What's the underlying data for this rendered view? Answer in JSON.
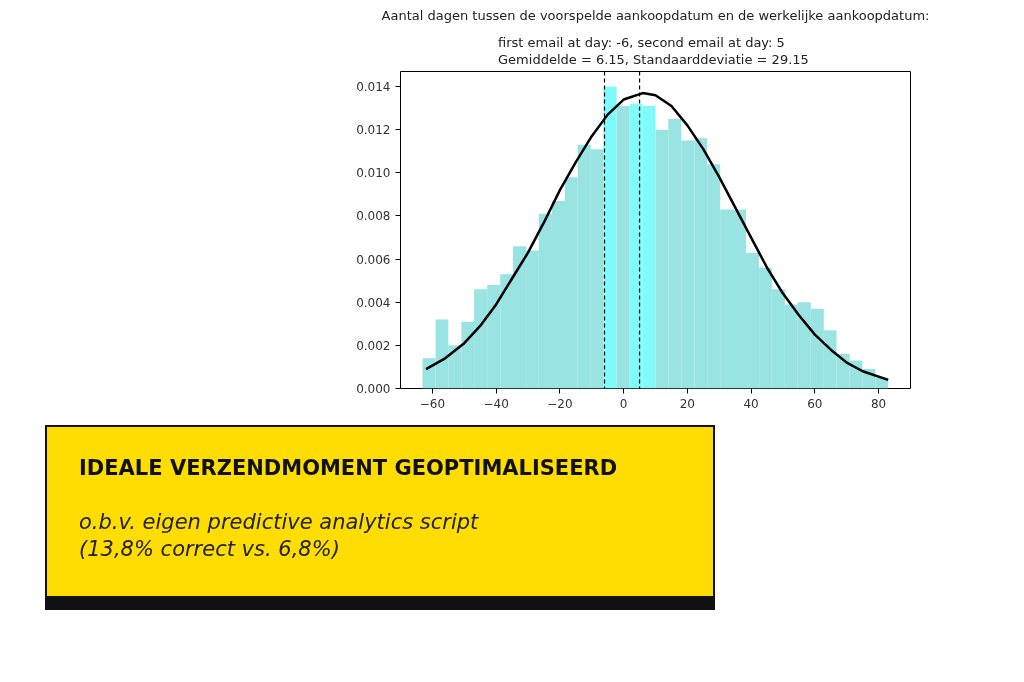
{
  "chart_data": {
    "type": "histogram",
    "title": "Aantal dagen tussen de voorspelde aankoopdatum en de werkelijke aankoopdatum:",
    "subtitle": "first email at day: -6, second email at day: 5\nGemiddelde = 6.15,  Standaarddeviatie = 29.15",
    "bins": [
      -63.1,
      -59.0,
      -55.0,
      -50.9,
      -46.9,
      -42.8,
      -38.7,
      -34.7,
      -30.6,
      -26.6,
      -22.5,
      -18.4,
      -14.4,
      -10.3,
      -6.3,
      -2.2,
      1.9,
      5.9,
      10.0,
      14.0,
      18.1,
      22.2,
      26.2,
      30.3,
      34.3,
      38.4,
      42.5,
      46.5,
      50.6,
      54.6,
      58.7,
      62.8,
      66.8,
      70.9,
      74.9,
      79.0,
      83.0
    ],
    "values": [
      0.0014,
      0.0032,
      0.002,
      0.0031,
      0.0046,
      0.0048,
      0.0053,
      0.0066,
      0.0064,
      0.0081,
      0.0087,
      0.0098,
      0.0113,
      0.0111,
      0.014,
      0.0131,
      0.0132,
      0.0131,
      0.012,
      0.0125,
      0.0115,
      0.0116,
      0.0104,
      0.0083,
      0.0083,
      0.0063,
      0.0056,
      0.0046,
      0.0039,
      0.004,
      0.0037,
      0.0027,
      0.0016,
      0.0013,
      0.0009,
      0.0005
    ],
    "colors": [
      "#99e3e3",
      "#99e3e3",
      "#99e3e3",
      "#99e3e3",
      "#99e3e3",
      "#99e3e3",
      "#99e3e3",
      "#99e3e3",
      "#99e3e3",
      "#99e3e3",
      "#99e3e3",
      "#99e3e3",
      "#99e3e3",
      "#99e3e3",
      "#80fbfb",
      "#99e3e3",
      "#80fbfb",
      "#80fbfb",
      "#99e3e3",
      "#99e3e3",
      "#99e3e3",
      "#99e3e3",
      "#99e3e3",
      "#99e3e3",
      "#99e3e3",
      "#99e3e3",
      "#99e3e3",
      "#99e3e3",
      "#99e3e3",
      "#99e3e3",
      "#99e3e3",
      "#99e3e3",
      "#99e3e3",
      "#99e3e3",
      "#99e3e3",
      "#99e3e3"
    ],
    "series": [
      {
        "type": "line",
        "color": "#000000",
        "x": [
          -62,
          -56,
          -50,
          -45,
          -40,
          -35,
          -30,
          -25,
          -20,
          -15,
          -10,
          -5,
          0,
          6,
          10,
          15,
          20,
          25,
          30,
          35,
          40,
          45,
          50,
          55,
          60,
          65,
          70,
          75,
          83
        ],
        "values": [
          0.0009,
          0.0014,
          0.0021,
          0.0029,
          0.0039,
          0.0051,
          0.0063,
          0.0077,
          0.0092,
          0.0105,
          0.0117,
          0.0127,
          0.0134,
          0.0137,
          0.0136,
          0.0131,
          0.0122,
          0.0111,
          0.0098,
          0.0084,
          0.007,
          0.0056,
          0.0044,
          0.0034,
          0.0025,
          0.0018,
          0.0012,
          0.0008,
          0.0004
        ]
      }
    ],
    "ref_lines": [
      {
        "axis": "x",
        "value": -6,
        "color": "#000000",
        "line_style": "dashed"
      },
      {
        "axis": "x",
        "value": 5,
        "color": "#000000",
        "line_style": "dashed"
      }
    ],
    "xlim": [
      -70,
      90
    ],
    "xticks": [
      {
        "value": -60,
        "label": "−60"
      },
      {
        "value": -40,
        "label": "−40"
      },
      {
        "value": -20,
        "label": "−20"
      },
      0,
      20,
      40,
      60,
      80
    ],
    "ylim": [
      0,
      0.0147
    ],
    "yticks": [
      {
        "value": 0,
        "label": "0.000"
      },
      0.002,
      0.004,
      0.006,
      0.008,
      {
        "value": 0.01,
        "label": "0.010"
      },
      0.012,
      0.014
    ],
    "grid": false,
    "annotations": [
      "IDEALE VERZENDMOMENT GEOPTIMALISEERD",
      "o.b.v. eigen predictive analytics script",
      "(13,8% correct vs. 6,8%)"
    ]
  }
}
